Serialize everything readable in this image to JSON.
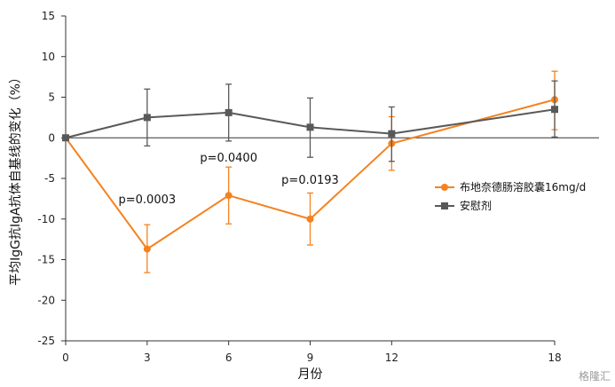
{
  "chart_data": {
    "type": "line",
    "ylabel": "平均IgG抗IgA抗体自基线的变化（%）",
    "xlabel": "月份",
    "x": [
      0,
      3,
      6,
      9,
      12,
      18
    ],
    "x_ticks": [
      "0",
      "3",
      "6",
      "9",
      "12",
      "18"
    ],
    "y_ticks": [
      "15",
      "10",
      "5",
      "0",
      "-5",
      "-10",
      "-15",
      "-20",
      "-25"
    ],
    "xlim": [
      0,
      18
    ],
    "ylim": [
      -25,
      15
    ],
    "grid": false,
    "legend_position": "right",
    "series": [
      {
        "name": "布地奈德肠溶胶囊16mg/d",
        "color": "#F58220",
        "marker": "circle",
        "values": [
          0,
          -13.7,
          -7.1,
          -10.0,
          -0.7,
          4.7
        ],
        "err_low": [
          0,
          -16.6,
          -10.6,
          -13.2,
          -4.0,
          1.0
        ],
        "err_high": [
          0,
          -10.7,
          -3.6,
          -6.8,
          2.6,
          8.2
        ]
      },
      {
        "name": "安慰剂",
        "color": "#595959",
        "marker": "square",
        "values": [
          0,
          2.5,
          3.1,
          1.3,
          0.5,
          3.5
        ],
        "err_low": [
          0,
          -1.0,
          -0.4,
          -2.4,
          -2.9,
          0.1
        ],
        "err_high": [
          0,
          6.0,
          6.6,
          4.9,
          3.8,
          7.0
        ]
      }
    ],
    "annotations": [
      {
        "text": "p=0.0003",
        "x": 3,
        "y": -7.6
      },
      {
        "text": "p=0.0400",
        "x": 6,
        "y": -2.5
      },
      {
        "text": "p=0.0193",
        "x": 9,
        "y": -5.2
      }
    ]
  },
  "watermark": "格隆汇"
}
